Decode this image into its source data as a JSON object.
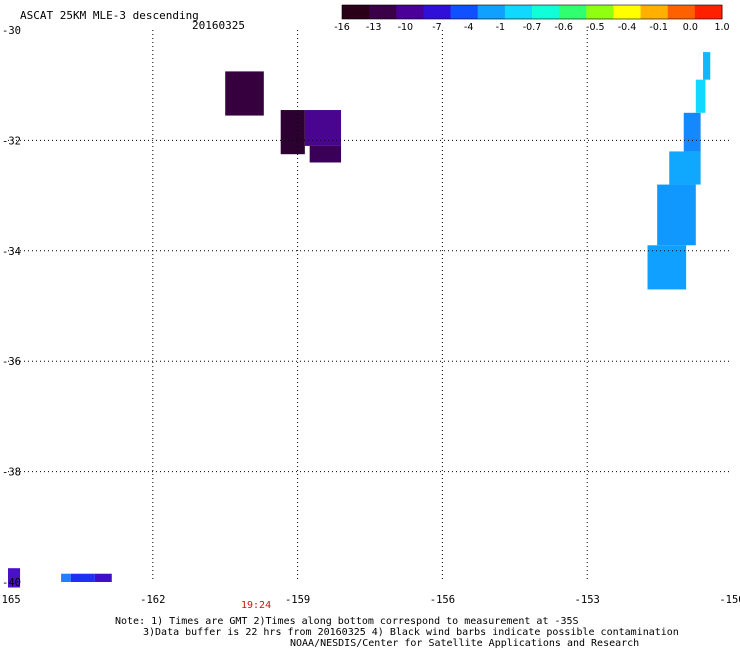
{
  "header": {
    "title": "ASCAT 25KM MLE-3 descending",
    "date": "20160325"
  },
  "colorbar": {
    "colors": [
      "#2a0018",
      "#3a0048",
      "#4a0098",
      "#3010d8",
      "#1050ff",
      "#10a0ff",
      "#10d8ff",
      "#10ffd8",
      "#30ff70",
      "#90ff10",
      "#ffff00",
      "#ffb000",
      "#ff6000",
      "#ff2000"
    ],
    "tick_labels": [
      "-16",
      "-13",
      "-10",
      "-7",
      "-4",
      "-1",
      "-0.7",
      "-0.6",
      "-0.5",
      "-0.4",
      "-0.1",
      "0.0",
      "1.0"
    ]
  },
  "map": {
    "lon_ticks": [
      "-165",
      "-162",
      "-159",
      "-156",
      "-153",
      "-150"
    ],
    "lat_ticks": [
      "-30",
      "-32",
      "-34",
      "-36",
      "-38",
      "-40"
    ],
    "lon_range": [
      -165,
      -150
    ],
    "lat_range": [
      -30,
      -40
    ],
    "data_cells": [
      {
        "lon0": -160.5,
        "lon1": -159.7,
        "lat0": -30.75,
        "lat1": -31.55,
        "color": "#36003e"
      },
      {
        "lon0": -159.35,
        "lon1": -158.85,
        "lat0": -31.45,
        "lat1": -32.25,
        "color": "#2c0030"
      },
      {
        "lon0": -158.85,
        "lon1": -158.1,
        "lat0": -31.45,
        "lat1": -32.1,
        "color": "#4a0590"
      },
      {
        "lon0": -158.75,
        "lon1": -158.1,
        "lat0": -32.1,
        "lat1": -32.4,
        "color": "#3a0058"
      },
      {
        "lon0": -151.75,
        "lon1": -150.95,
        "lat0": -33.9,
        "lat1": -34.7,
        "color": "#10a0ff"
      },
      {
        "lon0": -151.55,
        "lon1": -150.75,
        "lat0": -32.8,
        "lat1": -33.9,
        "color": "#1098ff"
      },
      {
        "lon0": -151.3,
        "lon1": -150.65,
        "lat0": -32.2,
        "lat1": -32.8,
        "color": "#10a8ff"
      },
      {
        "lon0": -151.0,
        "lon1": -150.65,
        "lat0": -31.5,
        "lat1": -32.2,
        "color": "#1488ff"
      },
      {
        "lon0": -150.75,
        "lon1": -150.55,
        "lat0": -30.9,
        "lat1": -31.5,
        "color": "#10d8ff"
      },
      {
        "lon0": -150.6,
        "lon1": -150.45,
        "lat0": -30.4,
        "lat1": -30.9,
        "color": "#10b8ff"
      },
      {
        "lon0": -165.0,
        "lon1": -164.75,
        "lat0": -39.75,
        "lat1": -40.1,
        "color": "#4a10c8"
      },
      {
        "lon0": -163.9,
        "lon1": -163.7,
        "lat0": -39.85,
        "lat1": -40.0,
        "color": "#2080ff"
      },
      {
        "lon0": -163.7,
        "lon1": -163.2,
        "lat0": -39.85,
        "lat1": -40.0,
        "color": "#2030f0"
      },
      {
        "lon0": -163.2,
        "lon1": -162.85,
        "lat0": -39.85,
        "lat1": -40.0,
        "color": "#4010c8"
      }
    ]
  },
  "annotations": {
    "time_label": "19:24",
    "note_line1": "Note: 1) Times are GMT 2)Times along bottom correspond to measurement at -35S",
    "note_line2": "3)Data buffer is 22 hrs from 20160325 4) Black wind barbs indicate possible contamination",
    "note_line3": "NOAA/NESDIS/Center for Satellite Applications and Research"
  }
}
